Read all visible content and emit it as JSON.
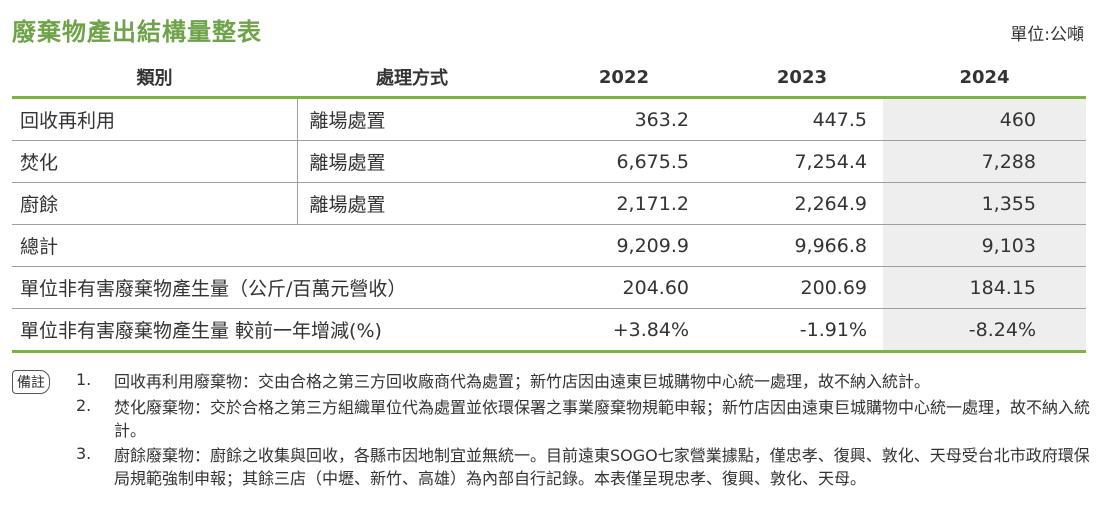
{
  "title": "廢棄物產出結構量整表",
  "unit": "單位:公噸",
  "table": {
    "headers": [
      "類別",
      "處理方式",
      "2022",
      "2023",
      "2024"
    ],
    "rows": [
      {
        "category": "回收再利用",
        "method": "離場處置",
        "y2022": "363.2",
        "y2023": "447.5",
        "y2024": "460"
      },
      {
        "category": "焚化",
        "method": "離場處置",
        "y2022": "6,675.5",
        "y2023": "7,254.4",
        "y2024": "7,288"
      },
      {
        "category": "廚餘",
        "method": "離場處置",
        "y2022": "2,171.2",
        "y2023": "2,264.9",
        "y2024": "1,355"
      },
      {
        "category": "總計",
        "y2022": "9,209.9",
        "y2023": "9,966.8",
        "y2024": "9,103"
      },
      {
        "category": "單位非有害廢棄物產生量（公斤/百萬元營收）",
        "y2022": "204.60",
        "y2023": "200.69",
        "y2024": "184.15"
      },
      {
        "category": "單位非有害廢棄物產生量 較前一年增減(%)",
        "y2022": "+3.84%",
        "y2023": "-1.91%",
        "y2024": "-8.24%"
      }
    ]
  },
  "notes": {
    "badge": "備註",
    "items": [
      {
        "num": "1.",
        "text": "回收再利用廢棄物：交由合格之第三方回收廠商代為處置；新竹店因由遠東巨城購物中心統一處理，故不納入統計。"
      },
      {
        "num": "2.",
        "text": "焚化廢棄物：交於合格之第三方組織單位代為處置並依環保署之事業廢棄物規範申報；新竹店因由遠東巨城購物中心統一處理，故不納入統計。"
      },
      {
        "num": "3.",
        "text": "廚餘廢棄物：廚餘之收集與回收，各縣市因地制宜並無統一。目前遠東SOGO七家營業據點，僅忠孝、復興、敦化、天母受台北市政府環保局規範強制申報；其餘三店（中壢、新竹、高雄）為內部自行記錄。本表僅呈現忠孝、復興、敦化、天母。"
      }
    ]
  },
  "colors": {
    "accent": "#6fa349",
    "rule": "#7cb342",
    "highlight": "#eeeeee"
  }
}
